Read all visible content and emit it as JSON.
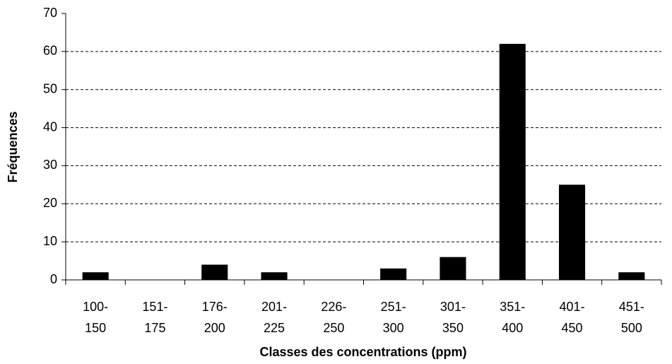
{
  "chart_data": {
    "type": "bar",
    "x_label": "Classes des concentrations (ppm)",
    "y_label": "Fréquences",
    "categories": [
      [
        "100-",
        "150"
      ],
      [
        "151-",
        "175"
      ],
      [
        "176-",
        "200"
      ],
      [
        "201-",
        "225"
      ],
      [
        "226-",
        "250"
      ],
      [
        "251-",
        "300"
      ],
      [
        "301-",
        "350"
      ],
      [
        "351-",
        "400"
      ],
      [
        "401-",
        "450"
      ],
      [
        "451-",
        "500"
      ]
    ],
    "values": [
      2,
      0,
      4,
      2,
      0,
      3,
      6,
      62,
      25,
      2
    ],
    "color": "#000000",
    "ylim": [
      0,
      70
    ],
    "yticks": [
      0,
      10,
      20,
      30,
      40,
      50,
      60,
      70
    ],
    "grid": true
  }
}
